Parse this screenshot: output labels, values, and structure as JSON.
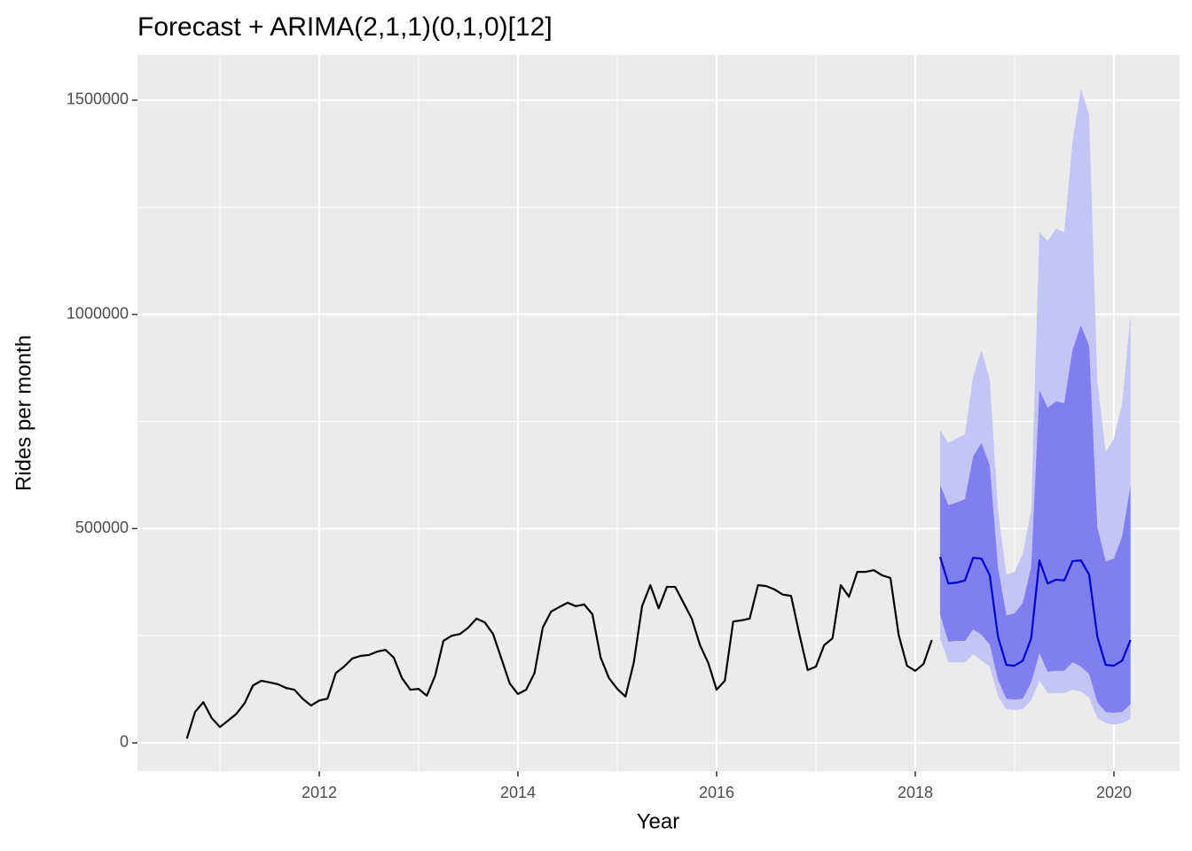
{
  "chart_data": {
    "type": "line",
    "title": "Forecast + ARIMA(2,1,1)(0,1,0)[12]",
    "xlabel": "Year",
    "ylabel": "Rides per month",
    "xlim": [
      2010.17,
      2020.661
    ],
    "xticks": [
      2012,
      2014,
      2016,
      2018,
      2020
    ],
    "xminorticks": [
      2011,
      2013,
      2015,
      2017,
      2019
    ],
    "ylim": [
      -66207,
      1605517
    ],
    "yticks": [
      0,
      500000,
      1000000,
      1500000
    ],
    "yminorticks": [
      250000,
      750000,
      1250000
    ],
    "grid": true,
    "bands": [
      {
        "color": "#c4c4f5",
        "x": [
          2018.25,
          2018.333,
          2018.417,
          2018.5,
          2018.583,
          2018.667,
          2018.75,
          2018.833,
          2018.917,
          2019,
          2019.083,
          2019.167,
          2019.25,
          2019.333,
          2019.417,
          2019.5,
          2019.583,
          2019.667,
          2019.75,
          2019.833,
          2019.917,
          2020,
          2020.083,
          2020.167
        ],
        "lower": [
          244000,
          188000,
          188000,
          188000,
          207000,
          192000,
          178000,
          108000,
          79000,
          77000,
          79000,
          99000,
          145000,
          116000,
          116000,
          116000,
          124000,
          120000,
          105000,
          58000,
          46000,
          43000,
          46000,
          56000
        ],
        "upper": [
          730000,
          700000,
          710000,
          720000,
          855000,
          917000,
          848000,
          544000,
          393000,
          399000,
          441000,
          544000,
          1192000,
          1171000,
          1200000,
          1192000,
          1403000,
          1527000,
          1465000,
          844000,
          679000,
          710000,
          792000,
          999000
        ]
      },
      {
        "color": "#7f7fef",
        "x": [
          2018.25,
          2018.333,
          2018.417,
          2018.5,
          2018.583,
          2018.667,
          2018.75,
          2018.833,
          2018.917,
          2019,
          2019.083,
          2019.167,
          2019.25,
          2019.333,
          2019.417,
          2019.5,
          2019.583,
          2019.667,
          2019.75,
          2019.833,
          2019.917,
          2020,
          2020.083,
          2020.167
        ],
        "lower": [
          300000,
          236000,
          238000,
          238000,
          265000,
          252000,
          230000,
          147000,
          103000,
          101000,
          103000,
          141000,
          209000,
          166000,
          168000,
          168000,
          188000,
          178000,
          161000,
          95000,
          72000,
          70000,
          72000,
          91000
        ],
        "upper": [
          602000,
          555000,
          561000,
          569000,
          668000,
          700000,
          648000,
          410000,
          298000,
          302000,
          327000,
          410000,
          823000,
          782000,
          797000,
          793000,
          917000,
          975000,
          927000,
          503000,
          424000,
          430000,
          482000,
          600000
        ]
      }
    ],
    "series": [
      {
        "color": "#000000",
        "x": [
          2010.667,
          2010.75,
          2010.833,
          2010.917,
          2011,
          2011.083,
          2011.167,
          2011.25,
          2011.333,
          2011.417,
          2011.5,
          2011.583,
          2011.667,
          2011.75,
          2011.833,
          2011.917,
          2012,
          2012.083,
          2012.167,
          2012.25,
          2012.333,
          2012.417,
          2012.5,
          2012.583,
          2012.667,
          2012.75,
          2012.833,
          2012.917,
          2013,
          2013.083,
          2013.167,
          2013.25,
          2013.333,
          2013.417,
          2013.5,
          2013.583,
          2013.667,
          2013.75,
          2013.833,
          2013.917,
          2014,
          2014.083,
          2014.167,
          2014.25,
          2014.333,
          2014.417,
          2014.5,
          2014.583,
          2014.667,
          2014.75,
          2014.833,
          2014.917,
          2015,
          2015.083,
          2015.167,
          2015.25,
          2015.333,
          2015.417,
          2015.5,
          2015.583,
          2015.667,
          2015.75,
          2015.833,
          2015.917,
          2016,
          2016.083,
          2016.167,
          2016.25,
          2016.333,
          2016.417,
          2016.5,
          2016.583,
          2016.667,
          2016.75,
          2016.833,
          2016.917,
          2017,
          2017.083,
          2017.167,
          2017.25,
          2017.333,
          2017.417,
          2017.5,
          2017.583,
          2017.667,
          2017.75,
          2017.833,
          2017.917,
          2018,
          2018.083,
          2018.167
        ],
        "values": [
          10000,
          72000,
          95000,
          58000,
          37000,
          52000,
          68000,
          93000,
          134000,
          145000,
          141000,
          137000,
          128000,
          124000,
          103000,
          87000,
          99000,
          103000,
          163000,
          178000,
          197000,
          203000,
          205000,
          213000,
          217000,
          199000,
          151000,
          124000,
          126000,
          110000,
          157000,
          238000,
          250000,
          254000,
          269000,
          290000,
          281000,
          254000,
          197000,
          139000,
          114000,
          124000,
          163000,
          269000,
          306000,
          317000,
          327000,
          319000,
          323000,
          300000,
          199000,
          151000,
          126000,
          108000,
          188000,
          319000,
          368000,
          314000,
          364000,
          364000,
          327000,
          290000,
          228000,
          186000,
          124000,
          145000,
          283000,
          286000,
          290000,
          368000,
          366000,
          358000,
          346000,
          343000,
          254000,
          170000,
          178000,
          228000,
          244000,
          368000,
          341000,
          399000,
          399000,
          403000,
          391000,
          385000,
          252000,
          180000,
          168000,
          184000,
          240000
        ]
      },
      {
        "color": "#0000cc",
        "x": [
          2018.25,
          2018.333,
          2018.417,
          2018.5,
          2018.583,
          2018.667,
          2018.75,
          2018.833,
          2018.917,
          2019,
          2019.083,
          2019.167,
          2019.25,
          2019.333,
          2019.417,
          2019.5,
          2019.583,
          2019.667,
          2019.75,
          2019.833,
          2019.917,
          2020,
          2020.083,
          2020.167
        ],
        "values": [
          434000,
          372000,
          374000,
          379000,
          432000,
          430000,
          391000,
          248000,
          182000,
          180000,
          192000,
          244000,
          426000,
          372000,
          381000,
          379000,
          424000,
          426000,
          393000,
          248000,
          182000,
          180000,
          192000,
          240000
        ]
      }
    ]
  }
}
